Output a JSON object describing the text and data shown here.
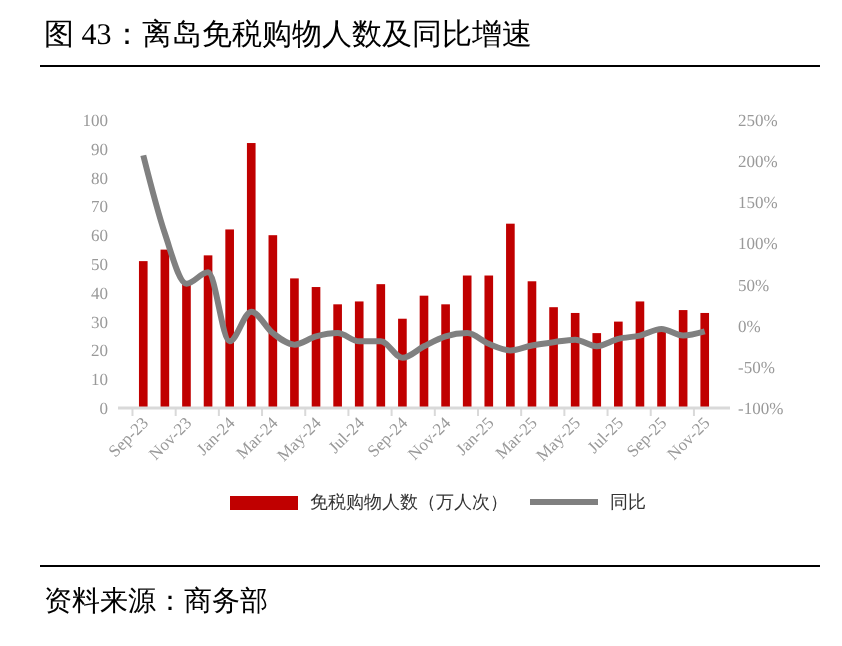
{
  "chart_data": {
    "type": "bar",
    "title": "图 43：离岛免税购物人数及同比增速",
    "annotations": [
      "资料来源：商务部"
    ],
    "categories": [
      "Sep-23",
      null,
      "Nov-23",
      null,
      "Jan-24",
      null,
      "Mar-24",
      null,
      "May-24",
      null,
      "Jul-24",
      null,
      "Sep-24",
      null,
      "Nov-24",
      null,
      "Jan-25",
      null,
      "Mar-25",
      null,
      "May-25",
      null,
      "Jul-25",
      null,
      "Sep-25",
      null,
      "Nov-25"
    ],
    "series": [
      {
        "name": "免税购物人数（万人次）",
        "color": "#c00000",
        "values": [
          51,
          55,
          43,
          53,
          62,
          92,
          60,
          45,
          42,
          36,
          37,
          43,
          31,
          39,
          36,
          46,
          46,
          64,
          44,
          35,
          33,
          26,
          30,
          37,
          28,
          34,
          33
        ]
      },
      {
        "name": "同比",
        "type": "line",
        "axis": "y2",
        "color": "#808080",
        "values": [
          207,
          112,
          51,
          65,
          -19,
          17,
          -9,
          -23,
          -13,
          -9,
          -19,
          -19,
          -39,
          -25,
          -13,
          -9,
          -22,
          -30,
          -24,
          -20,
          -17,
          -25,
          -16,
          -12,
          -4,
          -12,
          -7
        ]
      }
    ],
    "ylim": [
      0,
      100
    ],
    "yticks": [
      0,
      10,
      20,
      30,
      40,
      50,
      60,
      70,
      80,
      90,
      100
    ],
    "y2lim": [
      -100,
      250
    ],
    "y2ticks": [
      {
        "value": -100,
        "label": "-100%"
      },
      {
        "value": -50,
        "label": "-50%"
      },
      {
        "value": 0,
        "label": "0%"
      },
      {
        "value": 50,
        "label": "50%"
      },
      {
        "value": 100,
        "label": "100%"
      },
      {
        "value": 150,
        "label": "150%"
      },
      {
        "value": 200,
        "label": "200%"
      },
      {
        "value": 250,
        "label": "250%"
      }
    ],
    "legend": "bottom",
    "grid": false,
    "marker": "none",
    "line_style": "solid"
  }
}
